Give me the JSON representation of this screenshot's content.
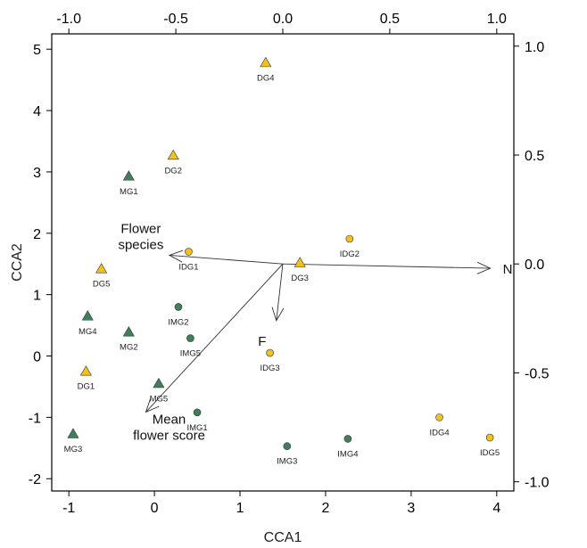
{
  "chart_data": {
    "type": "scatter",
    "xlabel": "CCA1",
    "ylabel": "CCA2",
    "xlim": [
      -1.2,
      4.2
    ],
    "ylim": [
      -2.2,
      5.25
    ],
    "x_ticks": [
      "-1",
      "0",
      "1",
      "2",
      "3",
      "4"
    ],
    "y_ticks": [
      "-2",
      "-1",
      "0",
      "1",
      "2",
      "3",
      "4",
      "5"
    ],
    "top_ticks": [
      "-1.0",
      "-0.5",
      "0.0",
      "0.5",
      "1.0"
    ],
    "right_ticks": [
      "-1.0",
      "-0.5",
      "0.0",
      "0.5",
      "1.0"
    ],
    "colors": {
      "green": "#3f7f5a",
      "yellow": "#f2c21b"
    },
    "points": [
      {
        "label": "DG4",
        "x": 1.3,
        "y": 4.78,
        "shape": "triangle",
        "color": "yellow"
      },
      {
        "label": "DG2",
        "x": 0.22,
        "y": 3.27,
        "shape": "triangle",
        "color": "yellow"
      },
      {
        "label": "MG1",
        "x": -0.3,
        "y": 2.93,
        "shape": "triangle",
        "color": "green"
      },
      {
        "label": "IDG1",
        "x": 0.4,
        "y": 1.7,
        "shape": "circle",
        "color": "yellow"
      },
      {
        "label": "IDG2",
        "x": 2.28,
        "y": 1.91,
        "shape": "circle",
        "color": "yellow"
      },
      {
        "label": "DG3",
        "x": 1.7,
        "y": 1.52,
        "shape": "triangle",
        "color": "yellow"
      },
      {
        "label": "DG5",
        "x": -0.62,
        "y": 1.42,
        "shape": "triangle",
        "color": "yellow"
      },
      {
        "label": "IMG2",
        "x": 0.28,
        "y": 0.8,
        "shape": "circle",
        "color": "green"
      },
      {
        "label": "MG4",
        "x": -0.78,
        "y": 0.65,
        "shape": "triangle",
        "color": "green"
      },
      {
        "label": "MG2",
        "x": -0.3,
        "y": 0.39,
        "shape": "triangle",
        "color": "green"
      },
      {
        "label": "IMG5",
        "x": 0.42,
        "y": 0.29,
        "shape": "circle",
        "color": "green"
      },
      {
        "label": "IDG3",
        "x": 1.35,
        "y": 0.05,
        "shape": "circle",
        "color": "yellow"
      },
      {
        "label": "DG1",
        "x": -0.8,
        "y": -0.25,
        "shape": "triangle",
        "color": "yellow"
      },
      {
        "label": "MG5",
        "x": 0.05,
        "y": -0.45,
        "shape": "triangle",
        "color": "green"
      },
      {
        "label": "IMG1",
        "x": 0.5,
        "y": -0.92,
        "shape": "circle",
        "color": "green"
      },
      {
        "label": "MG3",
        "x": -0.95,
        "y": -1.27,
        "shape": "triangle",
        "color": "green"
      },
      {
        "label": "IDG4",
        "x": 3.33,
        "y": -1.0,
        "shape": "circle",
        "color": "yellow"
      },
      {
        "label": "IMG3",
        "x": 1.55,
        "y": -1.47,
        "shape": "circle",
        "color": "green"
      },
      {
        "label": "IMG4",
        "x": 2.26,
        "y": -1.35,
        "shape": "circle",
        "color": "green"
      },
      {
        "label": "IDG5",
        "x": 3.92,
        "y": -1.33,
        "shape": "circle",
        "color": "yellow"
      }
    ],
    "arrows": [
      {
        "label": "N",
        "x": 0.97,
        "y": -0.02
      },
      {
        "label": "Flower\nspecies",
        "x": -0.53,
        "y": 0.04
      },
      {
        "label": "F",
        "x": -0.03,
        "y": -0.26
      },
      {
        "label": "Mean\nflower score",
        "x": -0.64,
        "y": -0.68
      }
    ],
    "arrow_origin": [
      0.0,
      0.0
    ]
  }
}
